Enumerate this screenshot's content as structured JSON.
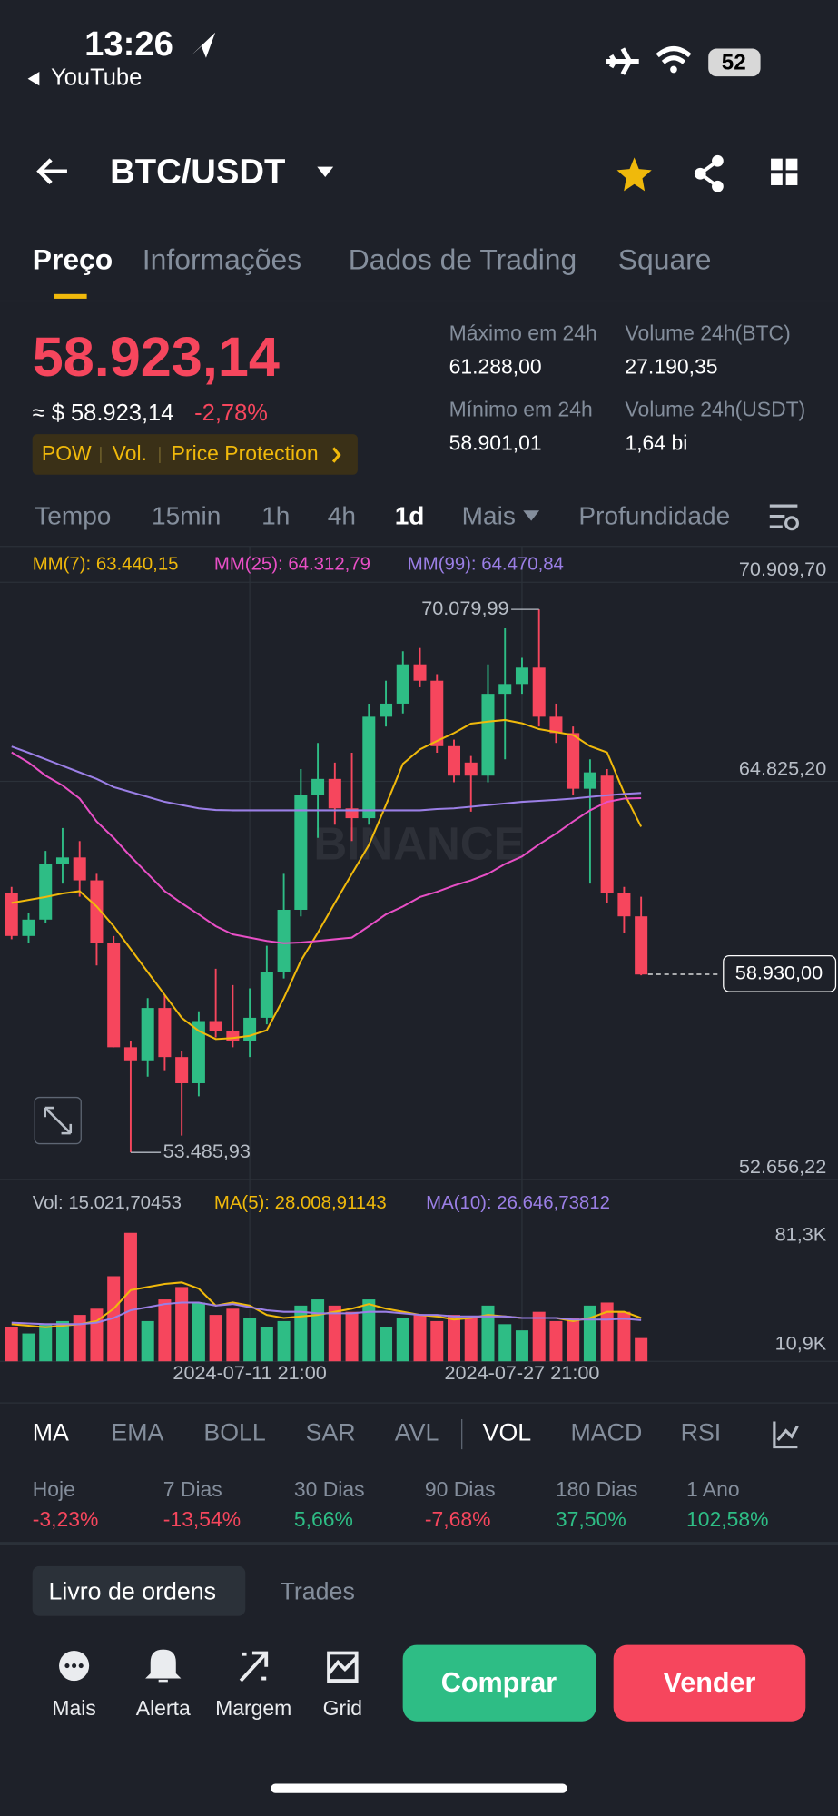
{
  "status_bar": {
    "time": "13:26",
    "back_app": "YouTube",
    "battery": "52"
  },
  "header": {
    "pair": "BTC/USDT"
  },
  "tabs": [
    "Preço",
    "Informações",
    "Dados de Trading",
    "Square"
  ],
  "price": {
    "last": "58.923,14",
    "approx": "≈ $ 58.923,14",
    "change": "-2,78%",
    "tags": [
      "POW",
      "Vol.",
      "Price Protection"
    ]
  },
  "stats": [
    {
      "label": "Máximo em 24h",
      "value": "61.288,00"
    },
    {
      "label": "Volume 24h(BTC)",
      "value": "27.190,35"
    },
    {
      "label": "Mínimo em 24h",
      "value": "58.901,01"
    },
    {
      "label": "Volume 24h(USDT)",
      "value": "1,64 bi"
    }
  ],
  "intervals": [
    "Tempo",
    "15min",
    "1h",
    "4h",
    "1d",
    "Mais",
    "Profundidade"
  ],
  "chart_data": {
    "type": "candlestick",
    "watermark": "BINANCE",
    "categories": [
      null,
      null,
      null,
      null,
      null,
      null,
      null,
      null,
      null,
      null,
      null,
      null,
      null,
      null,
      "2024-07-11 21:00",
      null,
      null,
      null,
      null,
      null,
      null,
      null,
      null,
      null,
      null,
      null,
      null,
      null,
      null,
      null,
      "2024-07-27 21:00",
      null,
      null,
      null,
      null,
      null,
      null,
      null
    ],
    "open": [
      61400,
      60100,
      60600,
      62300,
      62500,
      61800,
      59900,
      56700,
      56300,
      57900,
      56400,
      55600,
      57500,
      57200,
      56900,
      57600,
      59000,
      60900,
      64400,
      64900,
      64000,
      63700,
      66800,
      67200,
      68400,
      67900,
      65900,
      65400,
      65000,
      67500,
      67800,
      68300,
      66800,
      66300,
      64600,
      65000,
      61400,
      60700
    ],
    "high": [
      61600,
      60800,
      62700,
      63400,
      63000,
      62000,
      60100,
      56900,
      58200,
      58300,
      56600,
      57800,
      59100,
      58600,
      58500,
      59800,
      62000,
      65200,
      66000,
      65400,
      65700,
      67200,
      67900,
      68800,
      68900,
      68100,
      66100,
      65600,
      68400,
      69500,
      68600,
      70079.99,
      67200,
      66500,
      65500,
      65200,
      61600,
      61300
    ],
    "low": [
      60000,
      59900,
      60500,
      61700,
      61300,
      59200,
      56700,
      53485.93,
      55800,
      56000,
      54000,
      55200,
      57000,
      56700,
      56400,
      57400,
      58800,
      60700,
      63100,
      63500,
      63000,
      63500,
      66500,
      66900,
      67700,
      65700,
      64800,
      63900,
      64800,
      65500,
      67500,
      66500,
      66000,
      64400,
      61700,
      61100,
      60200,
      58900
    ],
    "close": [
      60100,
      60600,
      62300,
      62500,
      61800,
      59900,
      56700,
      56300,
      57900,
      56400,
      55600,
      57500,
      57200,
      56900,
      57600,
      59000,
      60900,
      64400,
      64900,
      64000,
      63700,
      66800,
      67200,
      68400,
      67900,
      65900,
      65000,
      65000,
      67500,
      67800,
      68300,
      66800,
      66300,
      64600,
      65100,
      61400,
      60700,
      58923.14
    ],
    "high_value_labels": [
      null,
      null,
      null,
      null,
      null,
      null,
      null,
      null,
      null,
      null,
      null,
      null,
      null,
      null,
      null,
      null,
      null,
      null,
      null,
      null,
      null,
      null,
      null,
      null,
      null,
      null,
      null,
      null,
      null,
      null,
      null,
      "70.079,99",
      null,
      null,
      null,
      null,
      null,
      null
    ],
    "low_value_labels": [
      null,
      null,
      null,
      null,
      null,
      null,
      null,
      "53.485,93",
      null,
      null,
      null,
      null,
      null,
      null,
      null,
      null,
      null,
      null,
      null,
      null,
      null,
      null,
      null,
      null,
      null,
      null,
      null,
      null,
      null,
      null,
      null,
      null,
      null,
      null,
      null,
      null,
      null,
      null
    ],
    "up_color": "#2ebd85",
    "down_color": "#f6465d",
    "series": [
      {
        "name": "MM(7): 63.440,15",
        "color": "#f0b90b",
        "values": [
          61110,
          61200,
          61290,
          61400,
          61470,
          61000,
          60400,
          59700,
          59000,
          58300,
          57600,
          57200,
          56950,
          56980,
          57050,
          57220,
          58200,
          59340,
          60200,
          61110,
          62000,
          62880,
          64100,
          65360,
          65800,
          66060,
          66300,
          66590,
          66650,
          66700,
          66600,
          66420,
          66330,
          66240,
          65900,
          65710,
          64470,
          63440.15
        ]
      },
      {
        "name": "MM(25): 64.312,79",
        "color": "#e84fc6",
        "values": [
          65710,
          65400,
          65000,
          64700,
          64300,
          63600,
          63100,
          62530,
          62000,
          61470,
          61100,
          60760,
          60400,
          60150,
          60050,
          59950,
          59880,
          59900,
          59950,
          60000,
          60050,
          60400,
          60760,
          61000,
          61290,
          61450,
          61640,
          61800,
          62000,
          62300,
          62530,
          62900,
          63230,
          63600,
          63940,
          64200,
          64300,
          64312.79
        ]
      },
      {
        "name": "MM(99): 64.470,84",
        "color": "#9b7fe6",
        "values": [
          65890,
          65700,
          65500,
          65300,
          65100,
          64900,
          64650,
          64500,
          64350,
          64200,
          64100,
          64000,
          63950,
          63940,
          63940,
          63940,
          63940,
          63940,
          63940,
          63940,
          63940,
          63940,
          63940,
          63940,
          63940,
          63980,
          64000,
          64050,
          64100,
          64150,
          64200,
          64230,
          64260,
          64300,
          64350,
          64400,
          64440,
          64470.84
        ]
      }
    ],
    "ylim": [
      52656.22,
      70909.7
    ],
    "yticks": [
      {
        "value": 70909.7,
        "label": "70.909,70"
      },
      {
        "value": 64825.2,
        "label": "64.825,20"
      },
      {
        "value": 52656.22,
        "label": "52.656,22"
      }
    ],
    "last_price": 58930,
    "last_price_label": "58.930,00",
    "volume": {
      "legend": "Vol: 15.021,70453",
      "values": [
        22000,
        18000,
        24000,
        26000,
        30000,
        34000,
        55000,
        83000,
        26000,
        40000,
        48000,
        38000,
        30000,
        34000,
        28000,
        22000,
        26000,
        36000,
        40000,
        36000,
        32000,
        40000,
        22000,
        28000,
        30000,
        26000,
        30000,
        28000,
        36000,
        24000,
        20000,
        32000,
        26000,
        28000,
        36000,
        38000,
        32000,
        15021.70453
      ],
      "series": [
        {
          "name": "MA(5): 28.008,91143",
          "color": "#f0b90b",
          "values": [
            24000,
            23000,
            22000,
            23000,
            24000,
            26000,
            34000,
            46000,
            48000,
            50000,
            51000,
            47000,
            36000,
            38000,
            36000,
            30000,
            28000,
            29000,
            30000,
            32000,
            34000,
            37000,
            34000,
            32000,
            30000,
            29000,
            27000,
            28000,
            30000,
            29000,
            28000,
            28000,
            28000,
            26000,
            28000,
            32000,
            32000,
            28008.91143
          ]
        },
        {
          "name": "MA(10): 26.646,73812",
          "color": "#9b7fe6",
          "values": [
            25000,
            24500,
            24000,
            24000,
            24000,
            25000,
            28000,
            33000,
            35000,
            37000,
            38000,
            38000,
            36000,
            37000,
            35000,
            33000,
            32000,
            32000,
            31000,
            31000,
            31000,
            32000,
            32000,
            31000,
            30000,
            30000,
            29000,
            29000,
            29000,
            29000,
            28000,
            28000,
            28000,
            27000,
            27000,
            27000,
            27500,
            26646.73812
          ]
        }
      ],
      "ylim": [
        0,
        89000
      ],
      "yticks": [
        {
          "value": 81300,
          "label": "81,3K"
        },
        {
          "value": 10900,
          "label": "10,9K"
        }
      ]
    }
  },
  "indicators": [
    "MA",
    "EMA",
    "BOLL",
    "SAR",
    "AVL",
    "VOL",
    "MACD",
    "RSI"
  ],
  "performance": [
    {
      "label": "Hoje",
      "value": "-3,23%"
    },
    {
      "label": "7 Dias",
      "value": "-13,54%"
    },
    {
      "label": "30 Dias",
      "value": "5,66%"
    },
    {
      "label": "90 Dias",
      "value": "-7,68%"
    },
    {
      "label": "180 Dias",
      "value": "37,50%"
    },
    {
      "label": "1 Ano",
      "value": "102,58%"
    }
  ],
  "book_tabs": [
    "Livro de ordens",
    "Trades"
  ],
  "actions": [
    "Mais",
    "Alerta",
    "Margem",
    "Grid"
  ],
  "buttons": [
    "Comprar",
    "Vender"
  ]
}
